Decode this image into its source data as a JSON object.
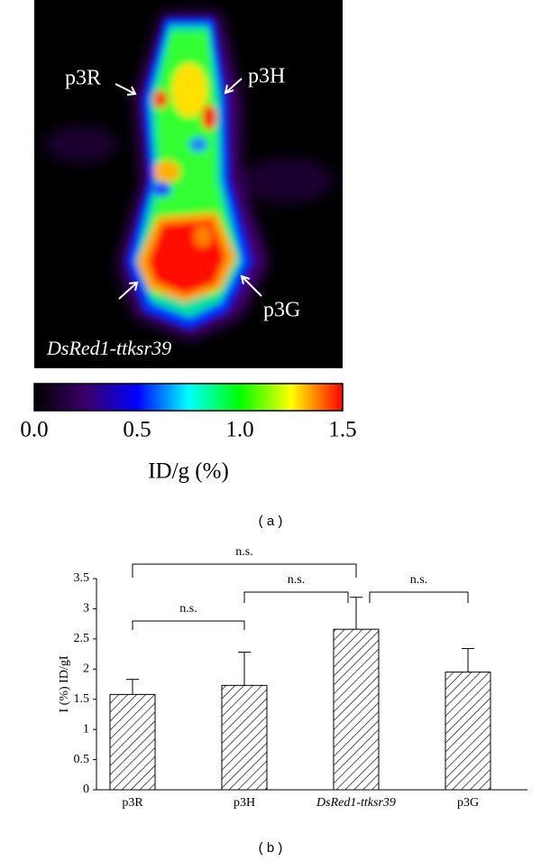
{
  "panel_a": {
    "labels": [
      "p3R",
      "p3H",
      "p3G"
    ],
    "image_label": "DsRed1-ttksr39",
    "colorbar": {
      "lim": [
        0,
        1.5
      ],
      "ticks": [
        {
          "value": 0,
          "label": "0.0"
        },
        0.5,
        {
          "value": 1,
          "label": "1.0"
        },
        1.5
      ],
      "label": "ID/g (%)",
      "colors": [
        "#000000",
        "#3a0068",
        "#0000ff",
        "#00ffff",
        "#00ff00",
        "#ffff00",
        "#ff0000"
      ]
    },
    "caption": "( a )"
  },
  "chart_data": {
    "type": "bar",
    "ylabel": "I (%) ID/gI",
    "categories": [
      "p3R",
      "p3H",
      "DsRed1-ttksr39",
      "p3G"
    ],
    "values": [
      1.58,
      1.73,
      2.66,
      1.95
    ],
    "errors": [
      0.25,
      0.55,
      0.53,
      0.39
    ],
    "color": "#000000",
    "ylim": [
      0,
      3.5
    ],
    "yticks": [
      0,
      0.5,
      1,
      1.5,
      2,
      2.5,
      3,
      3.5
    ],
    "annotations": [
      "n.s.",
      "n.s.",
      "n.s.",
      "n.s."
    ]
  },
  "caption_b": "( b )"
}
